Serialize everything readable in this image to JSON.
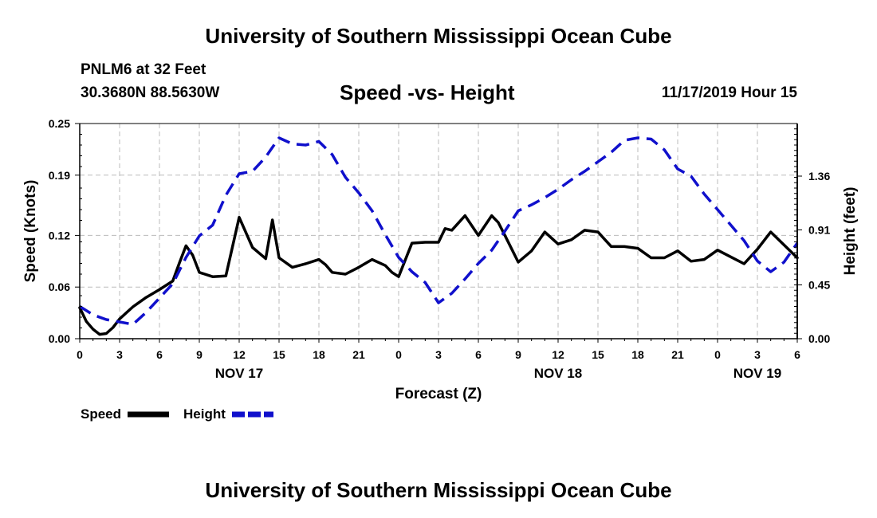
{
  "page": {
    "title_top": "University of Southern Mississippi Ocean Cube",
    "title_bottom": "University of Southern Mississippi Ocean Cube",
    "station": "PNLM6 at 32 Feet",
    "coords": "30.3680N 88.5630W",
    "datetime": "11/17/2019 Hour 15"
  },
  "colors": {
    "speed": "#000000",
    "height": "#1010cc",
    "grid": "#bbbbbb"
  },
  "chart_data": {
    "type": "line",
    "title": "Speed -vs- Height",
    "xlabel": "Forecast (Z)",
    "ylabel": "Speed (Knots)",
    "y2label": "Height (feet)",
    "x_range": [
      0,
      54
    ],
    "ylim": [
      0,
      0.25
    ],
    "y2lim": [
      0,
      1.8
    ],
    "y_ticks": [
      0,
      0.06,
      0.12,
      0.19,
      0.25
    ],
    "y_tick_labels": [
      "0.00",
      "0.06",
      "0.12",
      "0.19",
      "0.25"
    ],
    "y2_ticks": [
      0,
      0.45,
      0.91,
      1.36
    ],
    "y2_tick_labels": [
      "0.00",
      "0.45",
      "0.91",
      "1.36"
    ],
    "x_ticks": [
      0,
      3,
      6,
      9,
      12,
      15,
      18,
      21,
      24,
      27,
      30,
      33,
      36,
      39,
      42,
      45,
      48,
      51,
      54
    ],
    "x_tick_labels": [
      "0",
      "3",
      "6",
      "9",
      "12",
      "15",
      "18",
      "21",
      "0",
      "3",
      "6",
      "9",
      "12",
      "15",
      "18",
      "21",
      "0",
      "3",
      "6"
    ],
    "date_labels": [
      {
        "x": 12,
        "label": "NOV 17"
      },
      {
        "x": 36,
        "label": "NOV 18"
      },
      {
        "x": 51,
        "label": "NOV 19"
      }
    ],
    "legend": [
      {
        "name": "Speed",
        "style": "solid"
      },
      {
        "name": "Height",
        "style": "dashed"
      }
    ],
    "series": [
      {
        "name": "Speed",
        "axis": "left",
        "style": "solid",
        "x": [
          0,
          0.5,
          1,
          1.5,
          2,
          2.5,
          3,
          4,
          5,
          6,
          7,
          7.5,
          8,
          8.5,
          9,
          10,
          11,
          12,
          13,
          14,
          14.5,
          15,
          16,
          17,
          18,
          18.5,
          19,
          20,
          21,
          22,
          23,
          23.5,
          24,
          25,
          26,
          27,
          27.5,
          28,
          29,
          30,
          31,
          31.5,
          32,
          33,
          34,
          35,
          36,
          37,
          38,
          39,
          40,
          41,
          42,
          43,
          44,
          45,
          46,
          47,
          48,
          49,
          50,
          51,
          52,
          53,
          54
        ],
        "values": [
          0.036,
          0.02,
          0.011,
          0.005,
          0.006,
          0.013,
          0.023,
          0.037,
          0.048,
          0.057,
          0.067,
          0.088,
          0.108,
          0.097,
          0.077,
          0.072,
          0.073,
          0.141,
          0.106,
          0.093,
          0.138,
          0.094,
          0.083,
          0.087,
          0.092,
          0.086,
          0.077,
          0.075,
          0.083,
          0.092,
          0.085,
          0.077,
          0.072,
          0.111,
          0.112,
          0.112,
          0.128,
          0.126,
          0.143,
          0.12,
          0.143,
          0.135,
          0.12,
          0.089,
          0.102,
          0.124,
          0.11,
          0.115,
          0.126,
          0.124,
          0.107,
          0.107,
          0.105,
          0.094,
          0.094,
          0.102,
          0.09,
          0.092,
          0.103,
          0.095,
          0.087,
          0.104,
          0.124,
          0.109,
          0.094
        ]
      },
      {
        "name": "Height",
        "axis": "right",
        "style": "dashed",
        "x": [
          0,
          1,
          2,
          3,
          4,
          5,
          6,
          7,
          8,
          9,
          10,
          11,
          12,
          13,
          14,
          15,
          16,
          17,
          18,
          19,
          20,
          21,
          22,
          23,
          24,
          25,
          26,
          27,
          28,
          29,
          30,
          31,
          32,
          33,
          34,
          35,
          36,
          37,
          38,
          39,
          40,
          41,
          42,
          43,
          44,
          45,
          46,
          47,
          48,
          49,
          50,
          51,
          52,
          53,
          54
        ],
        "values": [
          0.27,
          0.2,
          0.16,
          0.14,
          0.12,
          0.22,
          0.34,
          0.46,
          0.68,
          0.86,
          0.95,
          1.2,
          1.38,
          1.4,
          1.52,
          1.68,
          1.63,
          1.62,
          1.65,
          1.54,
          1.35,
          1.22,
          1.07,
          0.87,
          0.68,
          0.56,
          0.47,
          0.3,
          0.38,
          0.5,
          0.63,
          0.74,
          0.9,
          1.07,
          1.12,
          1.18,
          1.25,
          1.33,
          1.4,
          1.48,
          1.56,
          1.66,
          1.68,
          1.67,
          1.58,
          1.42,
          1.36,
          1.21,
          1.08,
          0.95,
          0.82,
          0.65,
          0.56,
          0.64,
          0.8
        ]
      }
    ]
  }
}
